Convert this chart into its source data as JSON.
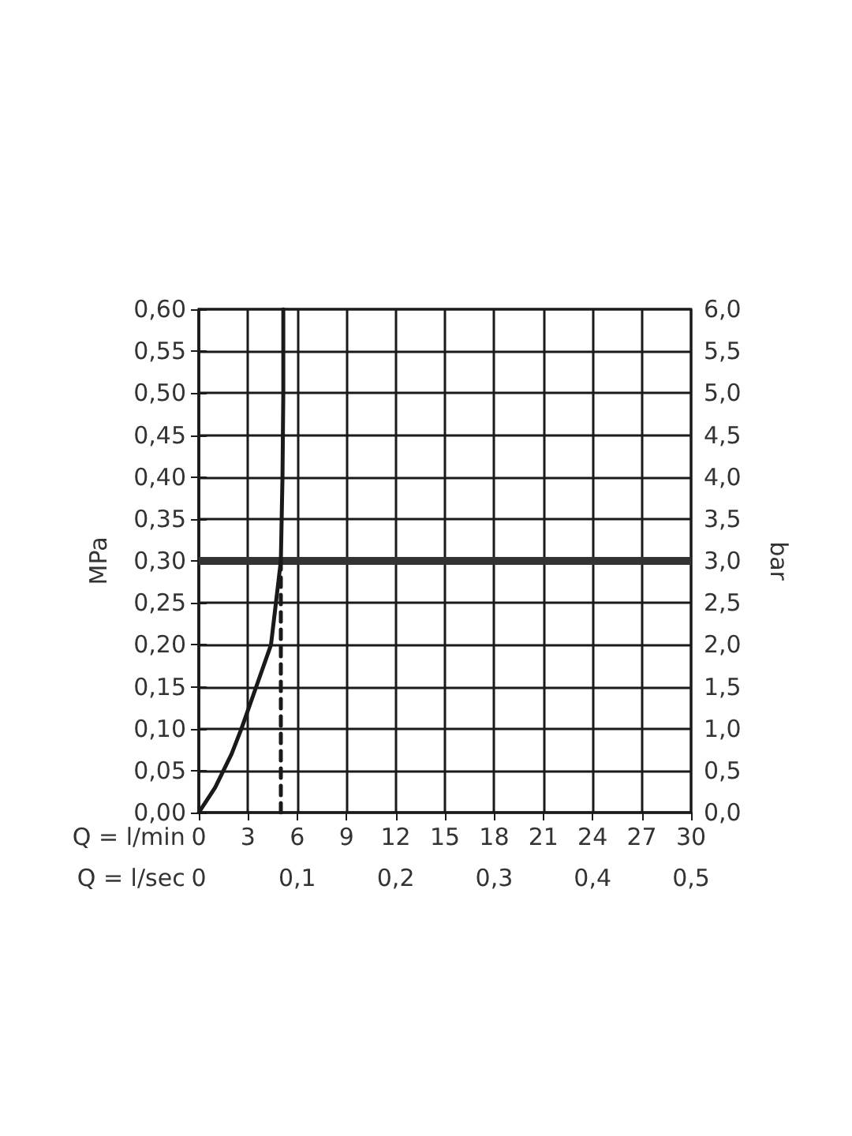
{
  "chart_data": {
    "type": "line",
    "xlabel": "Q = l/min",
    "x2label": "Q = l/sec",
    "ylabel": "MPa",
    "y2label": "bar",
    "xlim": [
      0,
      30
    ],
    "xticks": [
      0,
      3,
      6,
      9,
      12,
      15,
      18,
      21,
      24,
      27,
      30
    ],
    "x2lim": [
      0,
      0.5
    ],
    "x2ticks": [
      0,
      {
        "value": 0.1,
        "label": "0,1"
      },
      {
        "value": 0.2,
        "label": "0,2"
      },
      {
        "value": 0.3,
        "label": "0,3"
      },
      {
        "value": 0.4,
        "label": "0,4"
      },
      {
        "value": 0.5,
        "label": "0,5"
      }
    ],
    "ylim": [
      0,
      0.6
    ],
    "yticks": [
      {
        "value": 0,
        "label": "0,00"
      },
      {
        "value": 0.05,
        "label": "0,05"
      },
      {
        "value": 0.1,
        "label": "0,10"
      },
      {
        "value": 0.15,
        "label": "0,15"
      },
      {
        "value": 0.2,
        "label": "0,20"
      },
      {
        "value": 0.25,
        "label": "0,25"
      },
      {
        "value": 0.3,
        "label": "0,30"
      },
      {
        "value": 0.35,
        "label": "0,35"
      },
      {
        "value": 0.4,
        "label": "0,40"
      },
      {
        "value": 0.45,
        "label": "0,45"
      },
      {
        "value": 0.5,
        "label": "0,50"
      },
      {
        "value": 0.55,
        "label": "0,55"
      },
      {
        "value": 0.6,
        "label": "0,60"
      }
    ],
    "y2lim": [
      0,
      6
    ],
    "y2ticks": [
      {
        "value": 0,
        "label": "0,0"
      },
      {
        "value": 0.5,
        "label": "0,5"
      },
      {
        "value": 1,
        "label": "1,0"
      },
      {
        "value": 1.5,
        "label": "1,5"
      },
      {
        "value": 2,
        "label": "2,0"
      },
      {
        "value": 2.5,
        "label": "2,5"
      },
      {
        "value": 3,
        "label": "3,0"
      },
      {
        "value": 3.5,
        "label": "3,5"
      },
      {
        "value": 4,
        "label": "4,0"
      },
      {
        "value": 4.5,
        "label": "4,5"
      },
      {
        "value": 5,
        "label": "5,0"
      },
      {
        "value": 5.5,
        "label": "5,5"
      },
      {
        "value": 6,
        "label": "6,0"
      }
    ],
    "grid": true,
    "marker": "none",
    "series": [
      {
        "color": "#1a1a1a",
        "line_style": "solid",
        "x": [
          0,
          1,
          2,
          2.6,
          3.5,
          4.4,
          4.7,
          5.0,
          5.1,
          5.15,
          5.15
        ],
        "values": [
          0,
          0.03,
          0.07,
          0.1,
          0.15,
          0.2,
          0.25,
          0.3,
          0.4,
          0.5,
          0.6
        ]
      },
      {
        "color": "#1a1a1a",
        "line_style": "dashed",
        "x": [
          5.0,
          5.0
        ],
        "values": [
          0,
          0.3
        ]
      }
    ],
    "ref_lines": [
      {
        "axis": "y",
        "value": 0.3,
        "color": "#333333"
      }
    ]
  }
}
